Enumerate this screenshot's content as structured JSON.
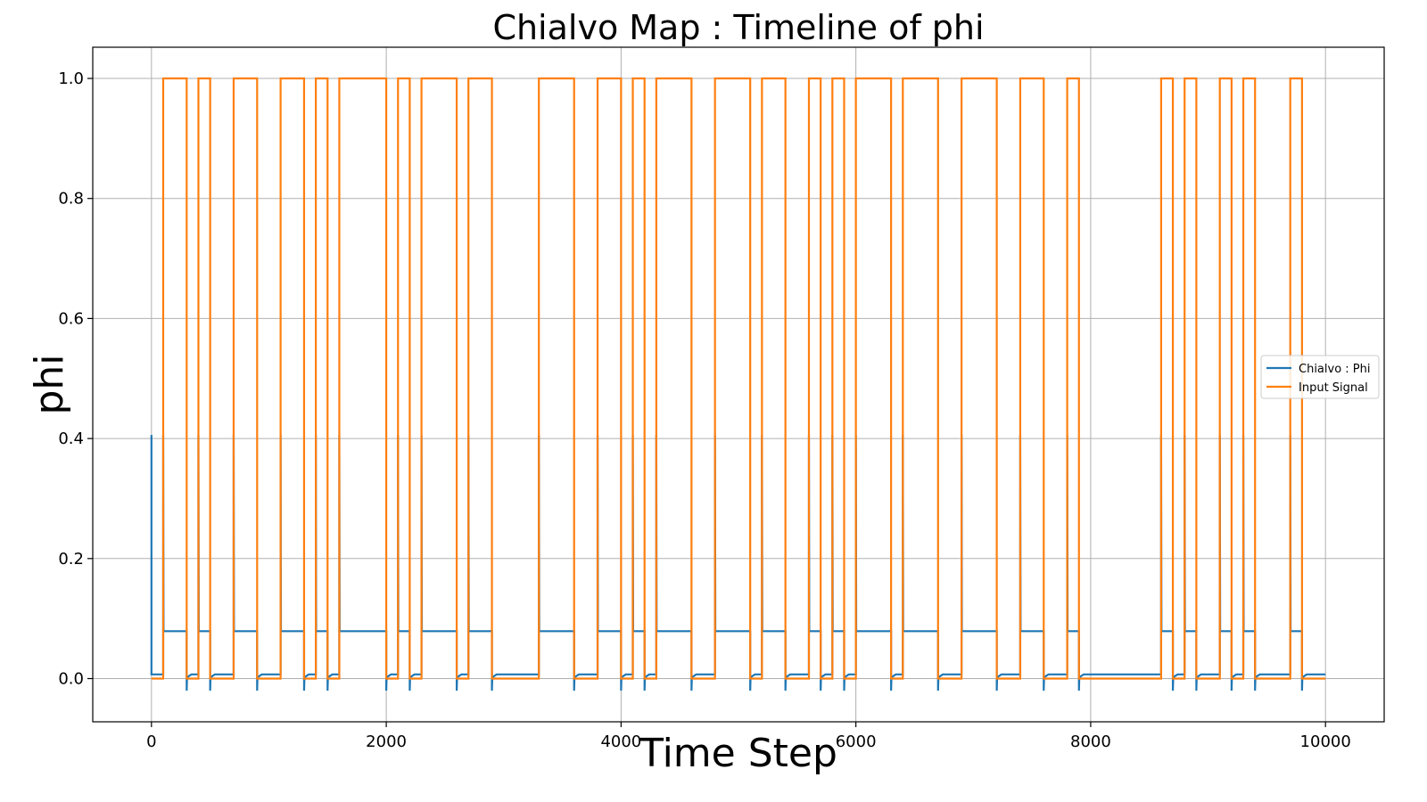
{
  "chart_data": {
    "type": "line",
    "title": "Chialvo Map : Timeline of phi",
    "xlabel": "Time Step",
    "ylabel": "phi",
    "xlim": [
      -500,
      10500
    ],
    "ylim": [
      -0.072,
      1.052
    ],
    "xticks": [
      0,
      2000,
      4000,
      6000,
      8000,
      10000
    ],
    "xtick_labels": [
      "0",
      "2000",
      "4000",
      "6000",
      "8000",
      "10000"
    ],
    "yticks": [
      0.0,
      0.2,
      0.4,
      0.6,
      0.8,
      1.0
    ],
    "ytick_labels": [
      "0.0",
      "0.2",
      "0.4",
      "0.6",
      "0.8",
      "1.0"
    ],
    "grid": true,
    "legend_position": "center-right",
    "x_end": 10000,
    "series": [
      {
        "name": "Chialvo : Phi",
        "color": "#1f77b4",
        "high_level": 0.079,
        "low_level": 0.007,
        "spike_peak": 0.406,
        "dip_min": -0.02
      },
      {
        "name": "Input Signal",
        "color": "#ff7f0e",
        "high_level": 1.0,
        "low_level": 0.0,
        "on_intervals": [
          [
            100,
            300
          ],
          [
            400,
            500
          ],
          [
            700,
            900
          ],
          [
            1100,
            1300
          ],
          [
            1400,
            1500
          ],
          [
            1600,
            2000
          ],
          [
            2100,
            2200
          ],
          [
            2300,
            2600
          ],
          [
            2700,
            2900
          ],
          [
            3300,
            3600
          ],
          [
            3800,
            4000
          ],
          [
            4100,
            4200
          ],
          [
            4300,
            4600
          ],
          [
            4800,
            5100
          ],
          [
            5200,
            5400
          ],
          [
            5600,
            5700
          ],
          [
            5800,
            5900
          ],
          [
            6000,
            6300
          ],
          [
            6400,
            6700
          ],
          [
            6900,
            7200
          ],
          [
            7400,
            7600
          ],
          [
            7800,
            7900
          ],
          [
            8600,
            8700
          ],
          [
            8800,
            8900
          ],
          [
            9100,
            9200
          ],
          [
            9300,
            9400
          ],
          [
            9700,
            9800
          ]
        ]
      }
    ]
  }
}
